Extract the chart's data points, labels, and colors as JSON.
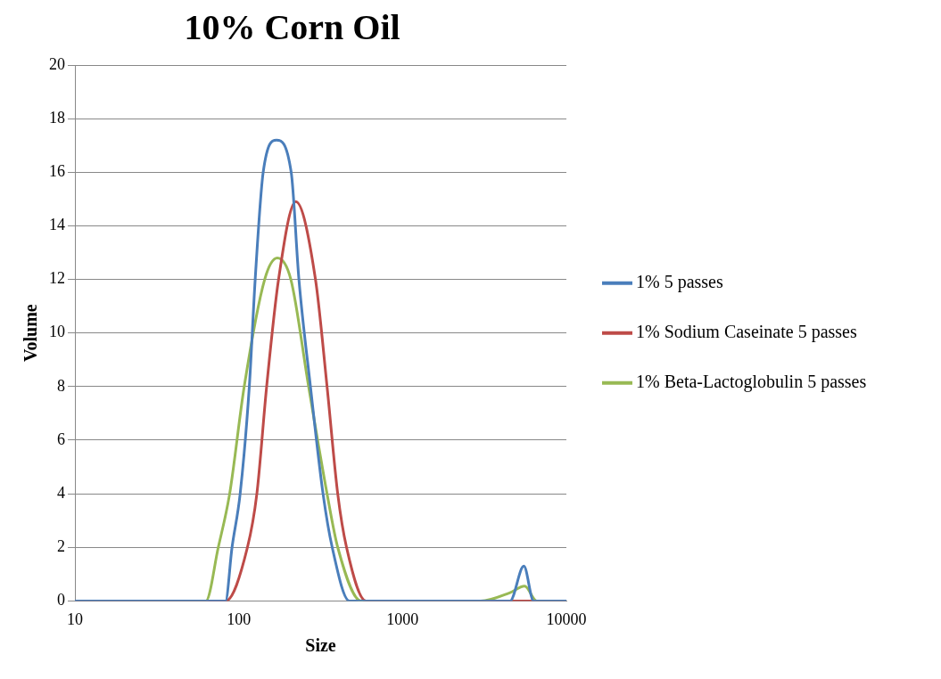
{
  "chart_data": {
    "type": "line",
    "title": "10% Corn Oil",
    "xlabel": "Size",
    "ylabel": "Volume",
    "log": "x",
    "xlim": [
      10,
      10000
    ],
    "xticks": [
      10,
      100,
      1000,
      10000
    ],
    "ylim": [
      0,
      20
    ],
    "yticks": [
      0,
      2,
      4,
      6,
      8,
      10,
      12,
      14,
      16,
      18,
      20
    ],
    "grid": "y",
    "legend": "right",
    "marker": "none",
    "line_style": "solid",
    "series": [
      {
        "name": "1% 5 passes",
        "color": "#4a7ebb",
        "x": [
          10,
          83,
          91,
          102,
          116,
          126,
          141,
          170,
          209,
          233,
          274,
          327,
          372,
          474,
          4530,
          5500,
          6310,
          10000
        ],
        "values": [
          0,
          0,
          2,
          4,
          8,
          12,
          16,
          17.2,
          16,
          12,
          8,
          4,
          2,
          0,
          0,
          1.3,
          0,
          0
        ]
      },
      {
        "name": "1% Sodium Caseinate 5 passes",
        "color": "#be4b48",
        "x": [
          10,
          83,
          113,
          129,
          148,
          175,
          223,
          294,
          346,
          402,
          455,
          598,
          10000
        ],
        "values": [
          0,
          0,
          2,
          4,
          8,
          12,
          14.9,
          12,
          8,
          4,
          2,
          0,
          0
        ]
      },
      {
        "name": "1% Beta-Lactoglobulin 5 passes",
        "color": "#98b954",
        "x": [
          10,
          63,
          75,
          88,
          108,
          144,
          172,
          208,
          267,
          346,
          402,
          558,
          3000,
          4500,
          5560,
          6600,
          10000
        ],
        "values": [
          0,
          0,
          2,
          4,
          8,
          12,
          12.8,
          12,
          8,
          4,
          2,
          0,
          0,
          0.3,
          0.55,
          0,
          0
        ]
      }
    ]
  }
}
